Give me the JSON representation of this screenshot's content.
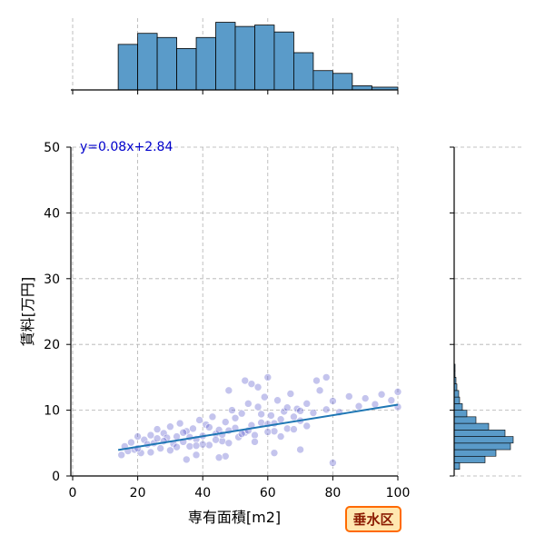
{
  "chart_data": {
    "type": "scatter",
    "title": "",
    "xlabel": "専有面積[m2]",
    "ylabel": "賃料[万円]",
    "xlim": [
      0,
      100
    ],
    "ylim": [
      0,
      50
    ],
    "x_ticks": [
      0,
      20,
      40,
      60,
      80,
      100
    ],
    "y_ticks": [
      0,
      10,
      20,
      30,
      40,
      50
    ],
    "grid": true,
    "point_color": "#5555cc",
    "line_color": "#1f77b4",
    "hist_color": "#5a9bc9",
    "regression": {
      "label": "y=0.08x+2.84",
      "slope": 0.08,
      "intercept": 2.84,
      "x_range": [
        14,
        100
      ],
      "color": "#0000cc"
    },
    "points": [
      [
        15,
        3.2
      ],
      [
        16,
        4.5
      ],
      [
        17,
        3.8
      ],
      [
        18,
        5.1
      ],
      [
        19,
        4.0
      ],
      [
        20,
        6.0
      ],
      [
        21,
        3.5
      ],
      [
        22,
        5.5
      ],
      [
        23,
        4.8
      ],
      [
        24,
        6.2
      ],
      [
        25,
        5.0
      ],
      [
        26,
        7.1
      ],
      [
        27,
        4.2
      ],
      [
        28,
        6.5
      ],
      [
        29,
        5.8
      ],
      [
        30,
        7.5
      ],
      [
        31,
        4.9
      ],
      [
        32,
        6.0
      ],
      [
        33,
        8.0
      ],
      [
        34,
        5.2
      ],
      [
        35,
        6.8
      ],
      [
        36,
        4.5
      ],
      [
        37,
        7.2
      ],
      [
        38,
        5.6
      ],
      [
        39,
        8.5
      ],
      [
        40,
        6.1
      ],
      [
        41,
        7.8
      ],
      [
        42,
        4.7
      ],
      [
        43,
        9.0
      ],
      [
        44,
        6.4
      ],
      [
        45,
        7.0
      ],
      [
        46,
        5.3
      ],
      [
        47,
        8.2
      ],
      [
        48,
        6.9
      ],
      [
        49,
        10.0
      ],
      [
        50,
        7.3
      ],
      [
        51,
        5.9
      ],
      [
        52,
        9.5
      ],
      [
        53,
        6.6
      ],
      [
        54,
        11.0
      ],
      [
        55,
        7.7
      ],
      [
        56,
        6.2
      ],
      [
        57,
        10.5
      ],
      [
        58,
        8.1
      ],
      [
        59,
        12.0
      ],
      [
        60,
        7.9
      ],
      [
        61,
        9.2
      ],
      [
        62,
        6.8
      ],
      [
        63,
        11.5
      ],
      [
        64,
        8.6
      ],
      [
        65,
        9.8
      ],
      [
        66,
        7.2
      ],
      [
        67,
        12.5
      ],
      [
        68,
        9.0
      ],
      [
        69,
        10.2
      ],
      [
        70,
        8.4
      ],
      [
        72,
        11.0
      ],
      [
        74,
        9.6
      ],
      [
        76,
        13.0
      ],
      [
        78,
        10.1
      ],
      [
        80,
        11.4
      ],
      [
        82,
        9.7
      ],
      [
        85,
        12.1
      ],
      [
        88,
        10.6
      ],
      [
        90,
        11.8
      ],
      [
        93,
        10.9
      ],
      [
        95,
        12.4
      ],
      [
        98,
        11.5
      ],
      [
        100,
        12.8
      ],
      [
        100,
        10.5
      ],
      [
        20,
        4.2
      ],
      [
        24,
        3.6
      ],
      [
        28,
        5.3
      ],
      [
        32,
        4.4
      ],
      [
        36,
        5.9
      ],
      [
        40,
        4.8
      ],
      [
        44,
        5.5
      ],
      [
        48,
        5.0
      ],
      [
        52,
        6.4
      ],
      [
        56,
        5.2
      ],
      [
        60,
        6.7
      ],
      [
        64,
        6.0
      ],
      [
        68,
        7.1
      ],
      [
        72,
        7.6
      ],
      [
        26,
        5.7
      ],
      [
        30,
        3.9
      ],
      [
        34,
        6.6
      ],
      [
        38,
        4.6
      ],
      [
        42,
        7.4
      ],
      [
        46,
        6.3
      ],
      [
        50,
        8.8
      ],
      [
        54,
        6.9
      ],
      [
        58,
        9.4
      ],
      [
        62,
        8.0
      ],
      [
        66,
        10.4
      ],
      [
        70,
        9.9
      ],
      [
        75,
        14.5
      ],
      [
        78,
        15.0
      ],
      [
        80,
        2.0
      ],
      [
        55,
        14.0
      ],
      [
        57,
        13.5
      ],
      [
        60,
        15.0
      ],
      [
        53,
        14.5
      ],
      [
        48,
        13.0
      ],
      [
        47,
        3.0
      ],
      [
        45,
        2.8
      ],
      [
        38,
        3.2
      ],
      [
        35,
        2.5
      ],
      [
        62,
        3.5
      ],
      [
        70,
        4.0
      ]
    ],
    "top_histogram": {
      "bin_edges": [
        14,
        20,
        26,
        32,
        38,
        44,
        50,
        56,
        62,
        68,
        74,
        80,
        86,
        92,
        100
      ],
      "counts": [
        33,
        41,
        38,
        30,
        38,
        49,
        46,
        47,
        42,
        27,
        14,
        12,
        3,
        2
      ],
      "ymax": 52
    },
    "right_histogram": {
      "bin_edges": [
        1,
        2,
        3,
        4,
        5,
        6,
        7,
        8,
        9,
        10,
        11,
        12,
        13,
        14,
        15,
        16,
        17
      ],
      "counts": [
        6,
        34,
        46,
        62,
        65,
        56,
        38,
        24,
        14,
        9,
        6,
        5,
        3,
        2,
        1,
        1
      ],
      "xmax": 80
    }
  },
  "badge": {
    "text": "垂水区",
    "bg_color": "#ffe7b0",
    "border_color": "#ff6a00",
    "text_color": "#8b1a00"
  }
}
